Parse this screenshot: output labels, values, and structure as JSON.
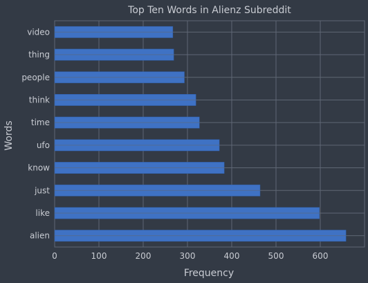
{
  "chart_data": {
    "type": "bar",
    "orientation": "horizontal",
    "title": "Top Ten Words in Alienz Subreddit",
    "xlabel": "Frequency",
    "ylabel": "Words",
    "categories": [
      "alien",
      "like",
      "just",
      "know",
      "ufo",
      "time",
      "think",
      "people",
      "thing",
      "video"
    ],
    "values": [
      658,
      598,
      464,
      383,
      372,
      327,
      319,
      293,
      269,
      267
    ],
    "xlim": [
      0,
      700
    ],
    "xticks": [
      0,
      100,
      200,
      300,
      400,
      500,
      600
    ],
    "xtick_labels": [
      "0",
      "100",
      "200",
      "300",
      "400",
      "500",
      "600"
    ],
    "grid": true,
    "colors": {
      "background": "#333a45",
      "bar": "#3f72c4",
      "bar_edge": "#2f5fa9",
      "grid": "#5f6775",
      "text": "#c9ccd3"
    }
  }
}
